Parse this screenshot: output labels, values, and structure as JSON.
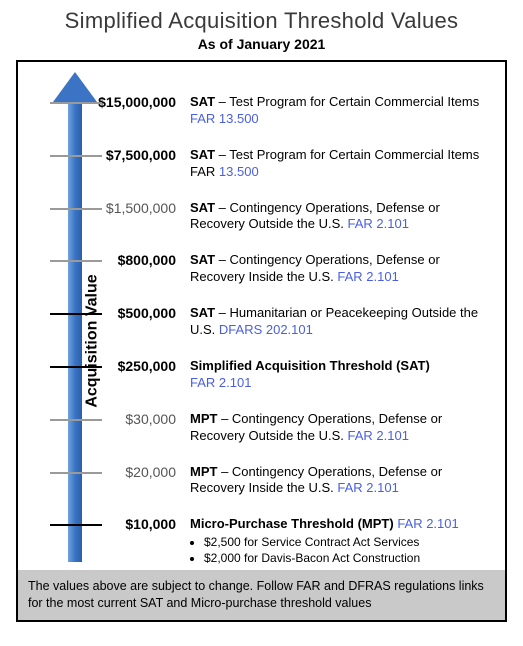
{
  "title": "Simplified Acquisition Threshold Values",
  "subtitle": "As of January 2021",
  "y_axis_label": "Acquisition Value",
  "arrow_color": "#3b74c4",
  "tick_color_default": "#9a9a9a",
  "tick_color_black": "#000000",
  "link_color": "#4a5fe0",
  "rows": [
    {
      "top_pct": 0,
      "amount": "$15,000,000",
      "bold": true,
      "tick_black": false,
      "lead": "SAT",
      "text": " – Test Program for Certain Commercial Items ",
      "far": "FAR 13.500"
    },
    {
      "top_pct": 12,
      "amount": "$7,500,000",
      "bold": true,
      "tick_black": false,
      "lead": "SAT",
      "text": " – Test Program for Certain Commercial Items FAR ",
      "far": "13.500"
    },
    {
      "top_pct": 24,
      "amount": "$1,500,000",
      "bold": false,
      "tick_black": false,
      "lead": "SAT",
      "text": " – Contingency Operations, Defense or Recovery Outside the U.S. ",
      "far": "FAR 2.101"
    },
    {
      "top_pct": 36,
      "amount": "$800,000",
      "bold": true,
      "tick_black": false,
      "lead": "SAT",
      "text": " – Contingency Operations, Defense or Recovery Inside the U.S. ",
      "far": "FAR 2.101"
    },
    {
      "top_pct": 48,
      "amount": "$500,000",
      "bold": true,
      "tick_black": true,
      "lead": "SAT",
      "text": " – Humanitarian or Peacekeeping Outside the U.S. ",
      "far": "DFARS 202.101"
    },
    {
      "top_pct": 60,
      "amount": "$250,000",
      "bold": true,
      "tick_black": true,
      "allbold": true,
      "lead": "",
      "text": "Simplified Acquisition Threshold (SAT)",
      "far": "FAR 2.101",
      "far_newline": true
    },
    {
      "top_pct": 72,
      "amount": "$30,000",
      "bold": false,
      "tick_black": false,
      "lead": "MPT",
      "text": " – Contingency Operations, Defense or Recovery Outside the U.S. ",
      "far": "FAR 2.101"
    },
    {
      "top_pct": 84,
      "amount": "$20,000",
      "bold": false,
      "tick_black": false,
      "lead": "MPT",
      "text": " – Contingency Operations, Defense or Recovery Inside the U.S. ",
      "far": "FAR 2.101"
    },
    {
      "top_pct": 96,
      "amount": "$10,000",
      "bold": true,
      "tick_black": true,
      "allbold": true,
      "lead": "",
      "text": "Micro-Purchase Threshold (MPT) ",
      "far": "FAR 2.101",
      "bullets": [
        "$2,500 for Service Contract Act Services",
        "$2,000 for Davis-Bacon Act Construction"
      ]
    }
  ],
  "footnote": "The values above are subject to change. Follow FAR and DFRAS regulations links for the most current SAT and Micro-purchase threshold values"
}
